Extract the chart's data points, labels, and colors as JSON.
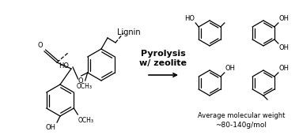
{
  "bg_color": "#ffffff",
  "text_color": "#000000",
  "pyrolysis_text_1": "Pyrolysis",
  "pyrolysis_text_2": "w/ zeolite",
  "lignin_label": "Lignin",
  "avg_mw_text_1": "Average molecular weight",
  "avg_mw_text_2": "~80-140g/mol",
  "figsize": [
    3.78,
    1.76
  ],
  "dpi": 100
}
